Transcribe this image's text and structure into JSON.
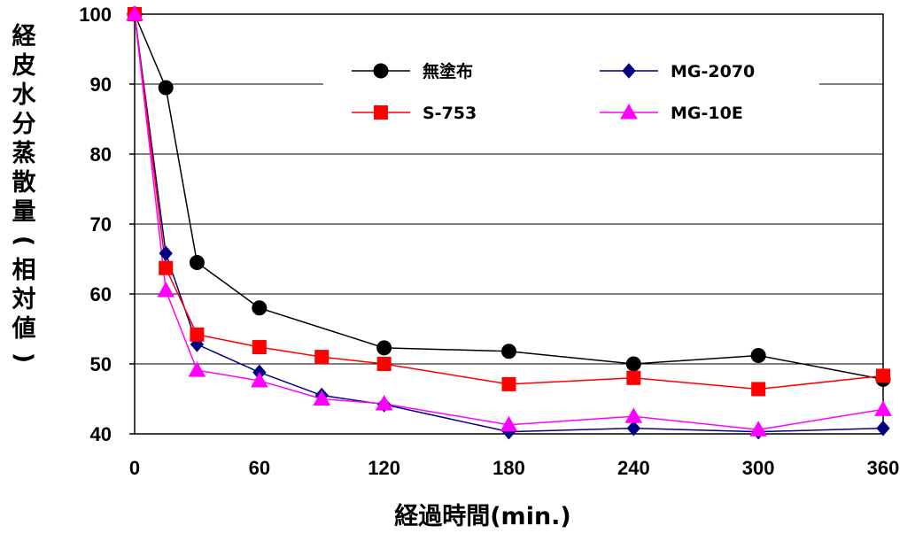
{
  "chart_data": {
    "type": "line",
    "xlabel": "経過時間(min.)",
    "ylabel": "経皮水分蒸散量(相対値)",
    "xlim": [
      0,
      360
    ],
    "ylim": [
      40,
      100
    ],
    "x_ticks": [
      0,
      60,
      120,
      180,
      240,
      300,
      360
    ],
    "y_ticks": [
      40,
      50,
      60,
      70,
      80,
      90,
      100
    ],
    "grid": "horizontal",
    "legend_position": "top, inside plot",
    "series": [
      {
        "name": "無塗布",
        "color": "#000000",
        "marker": "circle",
        "x": [
          0,
          15,
          30,
          60,
          120,
          180,
          240,
          300,
          360
        ],
        "y": [
          100,
          89.5,
          64.5,
          58,
          52.3,
          51.8,
          50,
          51.2,
          47.8
        ]
      },
      {
        "name": "MG-2070",
        "color": "#000080",
        "marker": "diamond",
        "x": [
          0,
          15,
          30,
          60,
          90,
          120,
          180,
          240,
          300,
          360
        ],
        "y": [
          100,
          65.8,
          52.8,
          48.8,
          45.5,
          44.2,
          40.3,
          40.8,
          40.3,
          40.8
        ]
      },
      {
        "name": "S-753",
        "color": "#ff0000",
        "marker": "square",
        "x": [
          0,
          15,
          30,
          60,
          90,
          120,
          180,
          240,
          300,
          360
        ],
        "y": [
          100,
          63.7,
          54.2,
          52.4,
          51,
          50,
          47.1,
          48,
          46.4,
          48.3
        ]
      },
      {
        "name": "MG-10E",
        "color": "#ff00ff",
        "marker": "triangle",
        "x": [
          0,
          15,
          30,
          60,
          90,
          120,
          180,
          240,
          300,
          360
        ],
        "y": [
          100,
          60.5,
          49.1,
          47.6,
          45,
          44.3,
          41.3,
          42.5,
          40.6,
          43.5
        ]
      }
    ]
  }
}
